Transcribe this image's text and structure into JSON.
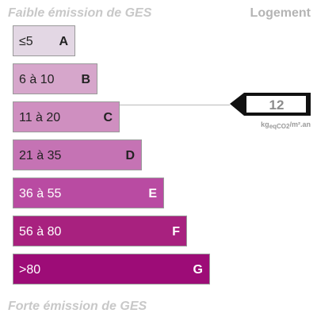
{
  "header": {
    "title": "Faible émission de GES",
    "type": "Logement"
  },
  "classes": [
    {
      "range": "≤5",
      "letter": "A"
    },
    {
      "range": "6 à 10",
      "letter": "B"
    },
    {
      "range": "11 à 20",
      "letter": "C"
    },
    {
      "range": "21 à 35",
      "letter": "D"
    },
    {
      "range": "36 à 55",
      "letter": "E"
    },
    {
      "range": "56 à 80",
      "letter": "F"
    },
    {
      "range": ">80",
      "letter": "G"
    }
  ],
  "indicator": {
    "value": 12,
    "unit": {
      "main": "kg",
      "sub": "eqCO2",
      "rest": "/m².an"
    }
  },
  "footer": {
    "title": "Forte émission de GES"
  }
}
